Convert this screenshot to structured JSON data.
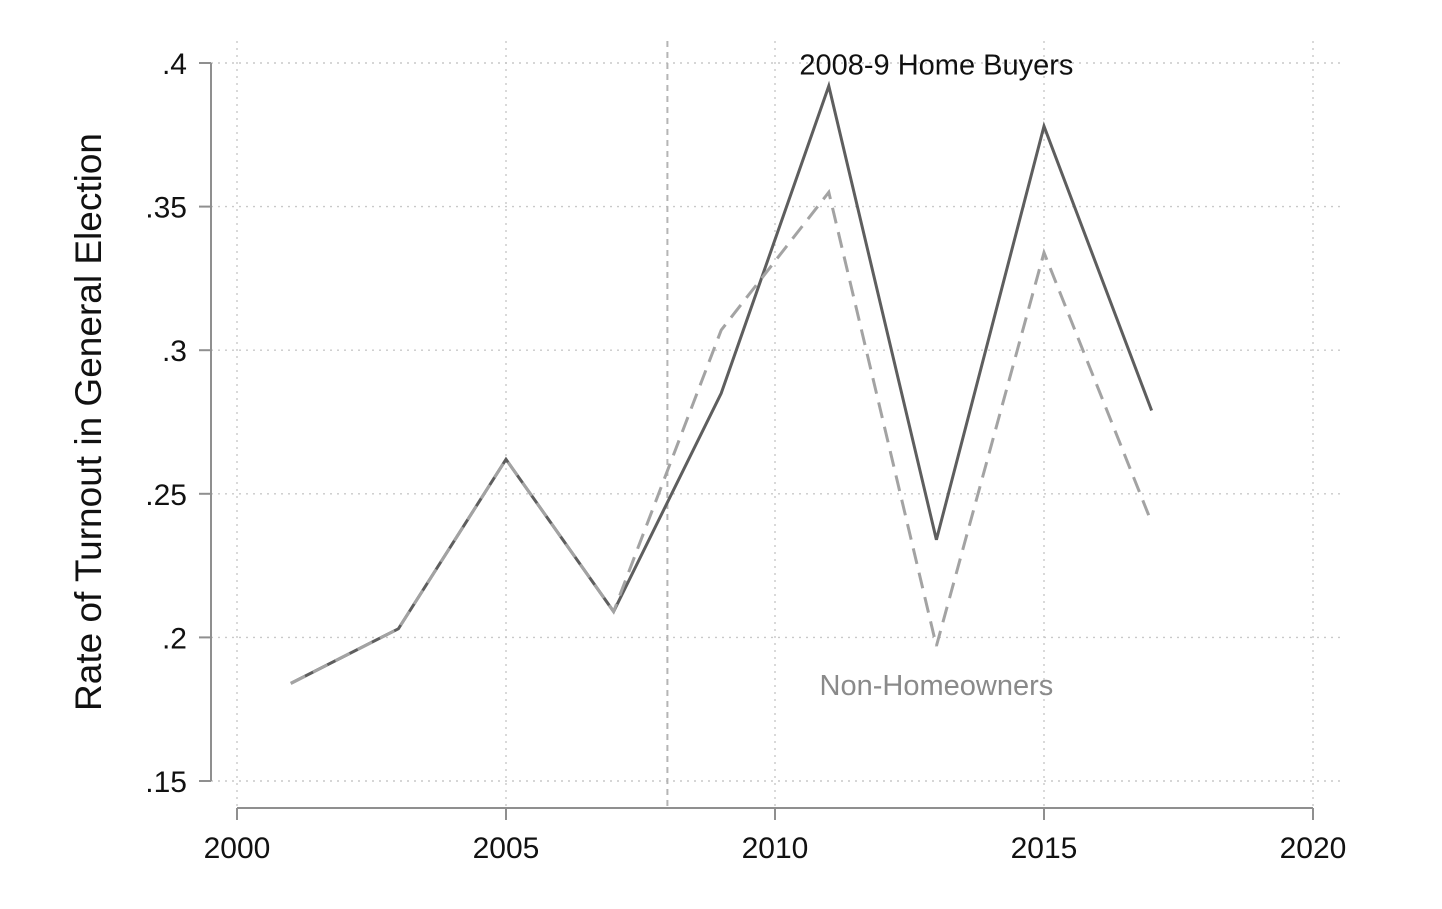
{
  "chart_data": {
    "type": "line",
    "title": "",
    "xlabel": "",
    "ylabel": "Rate of Turnout in General Election",
    "xlim": [
      2000,
      2020
    ],
    "ylim": [
      0.15,
      0.4
    ],
    "x_ticks": [
      2000,
      2005,
      2010,
      2015,
      2020
    ],
    "x_tick_labels": [
      "2000",
      "2005",
      "2010",
      "2015",
      "2020"
    ],
    "y_ticks": [
      0.15,
      0.2,
      0.25,
      0.3,
      0.35,
      0.4
    ],
    "y_tick_labels": [
      ".15",
      ".2",
      ".25",
      ".3",
      ".35",
      ".4"
    ],
    "grid": true,
    "reference_line_x": 2008,
    "series": [
      {
        "name": "2008-9 Home Buyers",
        "color": "#5e5e5e",
        "dash": "solid",
        "x": [
          2001,
          2003,
          2005,
          2007,
          2009,
          2011,
          2013,
          2015,
          2017
        ],
        "y": [
          0.184,
          0.203,
          0.262,
          0.209,
          0.285,
          0.392,
          0.234,
          0.378,
          0.279
        ]
      },
      {
        "name": "Non-Homeowners",
        "color": "#a3a3a3",
        "dash": "dashed",
        "x": [
          2001,
          2003,
          2005,
          2007,
          2009,
          2011,
          2013,
          2015,
          2017
        ],
        "y": [
          0.184,
          0.203,
          0.262,
          0.209,
          0.307,
          0.355,
          0.197,
          0.334,
          0.24
        ]
      }
    ],
    "annotations": [
      {
        "text": "2008-9 Home Buyers",
        "x": 2013.0,
        "y": 0.396,
        "color": "#111111"
      },
      {
        "text": "Non-Homeowners",
        "x": 2013.0,
        "y": 0.18,
        "color": "#8a8a8a"
      }
    ]
  }
}
